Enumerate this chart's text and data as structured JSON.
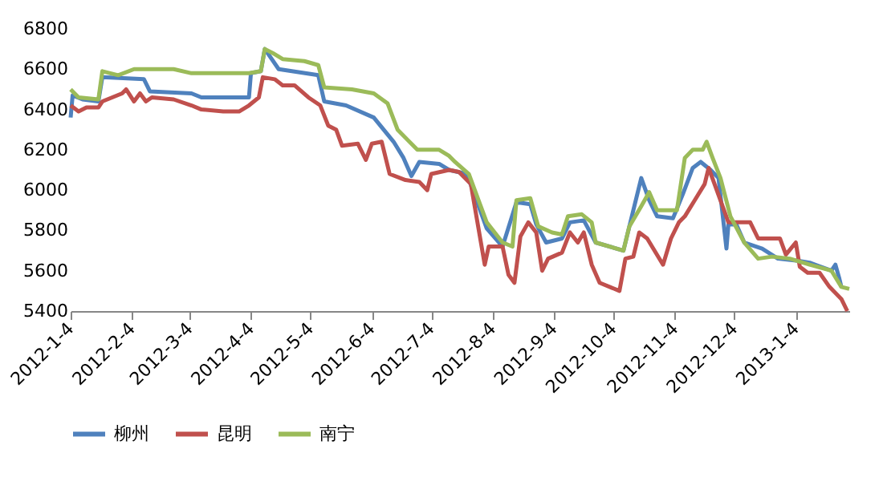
{
  "chart_data": {
    "type": "line",
    "xlim": [
      "2012-01-04",
      "2013-01-31"
    ],
    "xticks": [
      {
        "value": "2012-01-04",
        "label": "2012-1-4"
      },
      {
        "value": "2012-02-04",
        "label": "2012-2-4"
      },
      {
        "value": "2012-03-04",
        "label": "2012-3-4"
      },
      {
        "value": "2012-04-04",
        "label": "2012-4-4"
      },
      {
        "value": "2012-05-04",
        "label": "2012-5-4"
      },
      {
        "value": "2012-06-04",
        "label": "2012-6-4"
      },
      {
        "value": "2012-07-04",
        "label": "2012-7-4"
      },
      {
        "value": "2012-08-04",
        "label": "2012-8-4"
      },
      {
        "value": "2012-09-04",
        "label": "2012-9-4"
      },
      {
        "value": "2012-10-04",
        "label": "2012-10-4"
      },
      {
        "value": "2012-11-04",
        "label": "2012-11-4"
      },
      {
        "value": "2012-12-04",
        "label": "2012-12-4"
      },
      {
        "value": "2013-01-04",
        "label": "2013-1-4"
      }
    ],
    "ylim": [
      5400,
      6800
    ],
    "yticks": [
      5400,
      5600,
      5800,
      6000,
      6200,
      6400,
      6600,
      6800
    ],
    "grid": false,
    "legend": "bottom",
    "marker": "none",
    "line_style": "solid",
    "series": [
      {
        "name": "柳州",
        "color": "#4f81bd",
        "x": [
          "2012-01-04",
          "2012-01-05",
          "2012-01-10",
          "2012-01-18",
          "2012-01-20",
          "2012-02-10",
          "2012-02-13",
          "2012-03-05",
          "2012-03-10",
          "2012-04-03",
          "2012-04-04",
          "2012-04-09",
          "2012-04-11",
          "2012-04-18",
          "2012-05-08",
          "2012-05-11",
          "2012-05-22",
          "2012-06-05",
          "2012-06-15",
          "2012-06-20",
          "2012-06-24",
          "2012-06-28",
          "2012-07-08",
          "2012-07-13",
          "2012-07-22",
          "2012-08-01",
          "2012-08-09",
          "2012-08-16",
          "2012-08-23",
          "2012-08-26",
          "2012-08-31",
          "2012-09-08",
          "2012-09-12",
          "2012-09-19",
          "2012-09-25",
          "2012-10-09",
          "2012-10-18",
          "2012-10-22",
          "2012-10-26",
          "2012-11-03",
          "2012-11-08",
          "2012-11-13",
          "2012-11-17",
          "2012-11-22",
          "2012-11-26",
          "2012-11-30",
          "2012-12-01",
          "2012-12-05",
          "2012-12-09",
          "2012-12-18",
          "2012-12-26",
          "2013-01-05",
          "2013-01-11",
          "2013-01-22",
          "2013-01-24",
          "2013-01-26",
          "2013-01-27"
        ],
        "values": [
          6360,
          6470,
          6450,
          6440,
          6560,
          6550,
          6490,
          6480,
          6460,
          6460,
          6580,
          6590,
          6700,
          6600,
          6570,
          6440,
          6420,
          6360,
          6240,
          6160,
          6070,
          6140,
          6130,
          6100,
          6080,
          5810,
          5720,
          5940,
          5930,
          5830,
          5740,
          5760,
          5840,
          5850,
          5740,
          5700,
          6060,
          5950,
          5870,
          5860,
          5980,
          6110,
          6140,
          6100,
          6060,
          5710,
          5830,
          5830,
          5740,
          5710,
          5660,
          5650,
          5640,
          5600,
          5630,
          5560,
          5520
        ]
      },
      {
        "name": "昆明",
        "color": "#c0504d",
        "x": [
          "2012-01-04",
          "2012-01-08",
          "2012-01-12",
          "2012-01-18",
          "2012-01-20",
          "2012-01-30",
          "2012-02-01",
          "2012-02-05",
          "2012-02-08",
          "2012-02-11",
          "2012-02-14",
          "2012-02-25",
          "2012-03-05",
          "2012-03-10",
          "2012-03-21",
          "2012-03-29",
          "2012-04-03",
          "2012-04-08",
          "2012-04-10",
          "2012-04-16",
          "2012-04-20",
          "2012-04-26",
          "2012-05-03",
          "2012-05-09",
          "2012-05-13",
          "2012-05-17",
          "2012-05-20",
          "2012-05-28",
          "2012-06-01",
          "2012-06-04",
          "2012-06-09",
          "2012-06-13",
          "2012-06-21",
          "2012-06-28",
          "2012-07-02",
          "2012-07-04",
          "2012-07-13",
          "2012-07-18",
          "2012-07-24",
          "2012-07-31",
          "2012-08-02",
          "2012-08-09",
          "2012-08-12",
          "2012-08-15",
          "2012-08-18",
          "2012-08-22",
          "2012-08-26",
          "2012-08-29",
          "2012-09-01",
          "2012-09-08",
          "2012-09-12",
          "2012-09-16",
          "2012-09-19",
          "2012-09-23",
          "2012-09-27",
          "2012-10-07",
          "2012-10-10",
          "2012-10-14",
          "2012-10-17",
          "2012-10-21",
          "2012-10-29",
          "2012-11-02",
          "2012-11-06",
          "2012-11-09",
          "2012-11-14",
          "2012-11-19",
          "2012-11-21",
          "2012-11-24",
          "2012-12-01",
          "2012-12-12",
          "2012-12-16",
          "2012-12-27",
          "2012-12-30",
          "2013-01-04",
          "2013-01-06",
          "2013-01-10",
          "2013-01-16",
          "2013-01-21",
          "2013-01-27",
          "2013-01-30"
        ],
        "values": [
          6420,
          6390,
          6410,
          6410,
          6440,
          6480,
          6500,
          6440,
          6480,
          6440,
          6460,
          6450,
          6420,
          6400,
          6390,
          6390,
          6420,
          6460,
          6560,
          6550,
          6520,
          6520,
          6460,
          6420,
          6320,
          6300,
          6220,
          6230,
          6150,
          6230,
          6240,
          6080,
          6050,
          6040,
          6000,
          6080,
          6100,
          6090,
          6030,
          5630,
          5720,
          5720,
          5580,
          5540,
          5770,
          5840,
          5790,
          5600,
          5660,
          5690,
          5790,
          5740,
          5790,
          5630,
          5540,
          5500,
          5660,
          5670,
          5790,
          5760,
          5630,
          5760,
          5840,
          5870,
          5950,
          6030,
          6110,
          6030,
          5840,
          5840,
          5760,
          5760,
          5680,
          5740,
          5620,
          5590,
          5590,
          5520,
          5460,
          5400
        ]
      },
      {
        "name": "南宁",
        "color": "#9bbb59",
        "x": [
          "2012-01-04",
          "2012-01-08",
          "2012-01-18",
          "2012-01-20",
          "2012-01-28",
          "2012-02-05",
          "2012-02-25",
          "2012-03-05",
          "2012-03-25",
          "2012-04-03",
          "2012-04-09",
          "2012-04-11",
          "2012-04-15",
          "2012-04-20",
          "2012-05-01",
          "2012-05-08",
          "2012-05-11",
          "2012-05-25",
          "2012-06-05",
          "2012-06-12",
          "2012-06-17",
          "2012-06-27",
          "2012-07-08",
          "2012-07-13",
          "2012-07-16",
          "2012-07-23",
          "2012-08-01",
          "2012-08-09",
          "2012-08-14",
          "2012-08-16",
          "2012-08-23",
          "2012-08-27",
          "2012-09-03",
          "2012-09-08",
          "2012-09-11",
          "2012-09-18",
          "2012-09-23",
          "2012-09-25",
          "2012-10-09",
          "2012-10-12",
          "2012-10-18",
          "2012-10-22",
          "2012-10-26",
          "2012-11-05",
          "2012-11-09",
          "2012-11-13",
          "2012-11-18",
          "2012-11-20",
          "2012-11-23",
          "2012-11-27",
          "2012-12-02",
          "2012-12-09",
          "2012-12-16",
          "2012-12-23",
          "2013-01-01",
          "2013-01-11",
          "2013-01-22",
          "2013-01-27",
          "2013-01-31"
        ],
        "values": [
          6500,
          6460,
          6450,
          6590,
          6570,
          6600,
          6600,
          6580,
          6580,
          6580,
          6590,
          6700,
          6680,
          6650,
          6640,
          6620,
          6510,
          6500,
          6480,
          6430,
          6300,
          6200,
          6200,
          6170,
          6140,
          6080,
          5840,
          5740,
          5720,
          5950,
          5960,
          5820,
          5790,
          5780,
          5870,
          5880,
          5840,
          5740,
          5700,
          5820,
          5920,
          5990,
          5900,
          5900,
          6160,
          6200,
          6200,
          6240,
          6160,
          6060,
          5870,
          5740,
          5660,
          5670,
          5660,
          5630,
          5600,
          5520,
          5510
        ]
      }
    ]
  }
}
